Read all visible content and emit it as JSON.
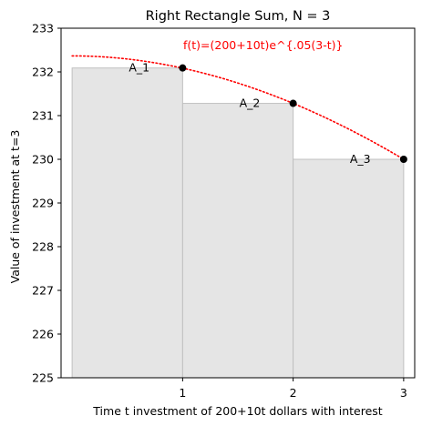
{
  "chart_data": {
    "type": "bar",
    "title": "Right Rectangle Sum, N = 3",
    "xlabel": "Time t investment of 200+10t dollars with interest",
    "ylabel": "Value of investment at t=3",
    "xlim": [
      -0.1,
      3.1
    ],
    "ylim": [
      225,
      233
    ],
    "xticks": [
      1,
      2,
      3
    ],
    "yticks": [
      225,
      226,
      227,
      228,
      229,
      230,
      231,
      232,
      233
    ],
    "rectangles": [
      {
        "label": "A_1",
        "x0": 0,
        "x1": 1,
        "height": 232.09
      },
      {
        "label": "A_2",
        "x0": 1,
        "x1": 2,
        "height": 231.28
      },
      {
        "label": "A_3",
        "x0": 2,
        "x1": 3,
        "height": 230.0
      }
    ],
    "points": [
      {
        "x": 1,
        "y": 232.09
      },
      {
        "x": 2,
        "y": 231.28
      },
      {
        "x": 3,
        "y": 230.0
      }
    ],
    "curve": {
      "label": "f(t)=(200+10t)e^{.05(3-t)}",
      "x_range": [
        0,
        3
      ],
      "style": "dotted",
      "color": "#ff0000"
    },
    "rect_color": "#e5e5e5",
    "rect_edge_color": "#c0c0c0",
    "point_color": "#000000",
    "grid": false
  }
}
